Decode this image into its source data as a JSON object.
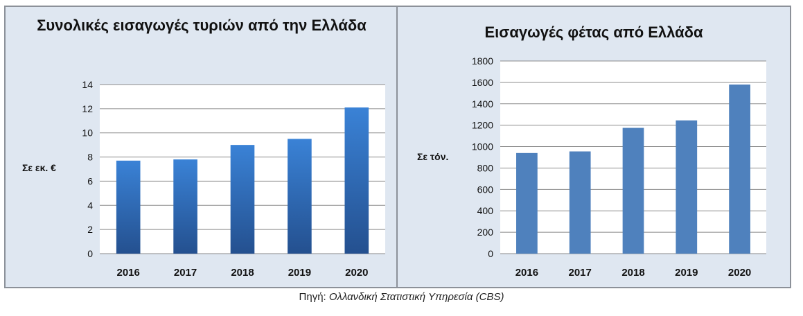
{
  "chart_data": [
    {
      "type": "bar",
      "title": "Συνολικές εισαγωγές τυριών από την Ελλάδα",
      "ylabel": "Σε εκ. €",
      "categories": [
        "2016",
        "2017",
        "2018",
        "2019",
        "2020"
      ],
      "values": [
        7.7,
        7.8,
        9.0,
        9.5,
        12.1
      ],
      "ylim": [
        0,
        14
      ],
      "yticks": [
        0,
        2,
        4,
        6,
        8,
        10,
        12,
        14
      ],
      "grid": true,
      "color": "#2f6cc0"
    },
    {
      "type": "bar",
      "title": "Εισαγωγές φέτας από Ελλάδα",
      "ylabel": "Σε τόν.",
      "categories": [
        "2016",
        "2017",
        "2018",
        "2019",
        "2020"
      ],
      "values": [
        940,
        955,
        1175,
        1245,
        1580
      ],
      "ylim": [
        0,
        1800
      ],
      "yticks": [
        0,
        200,
        400,
        600,
        800,
        1000,
        1200,
        1400,
        1600,
        1800
      ],
      "grid": true,
      "color": "#4f81bd"
    }
  ],
  "source": {
    "label": "Πηγή:",
    "text": "Ολλανδική Στατιστική Υπηρεσία (CBS)"
  }
}
